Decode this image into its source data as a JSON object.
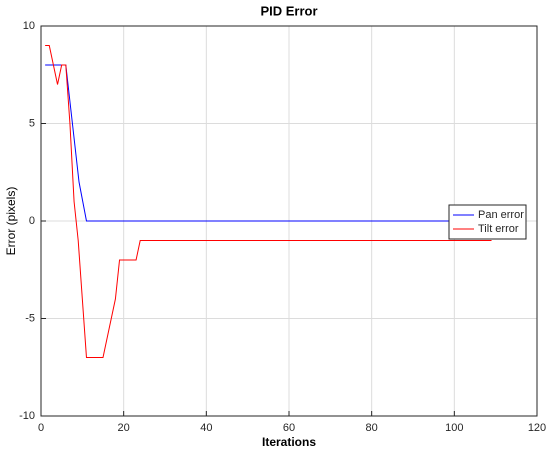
{
  "chart_data": {
    "type": "line",
    "title": "PID Error",
    "x_label": "Iterations",
    "y_label": "Error (pixels)",
    "xlim": [
      0,
      120
    ],
    "xticks": [
      0,
      20,
      40,
      60,
      80,
      100,
      120
    ],
    "ylim": [
      -10,
      10
    ],
    "yticks": [
      -10,
      -5,
      0,
      5,
      10
    ],
    "grid": true,
    "legend": "east",
    "series": [
      {
        "name": "Pan error",
        "color": "#0000ff",
        "x": [
          1,
          6,
          9.2,
          11,
          109
        ],
        "values": [
          8,
          8,
          2,
          0,
          0
        ]
      },
      {
        "name": "Tilt error",
        "color": "#ff0000",
        "x": [
          1,
          2,
          3,
          4,
          5,
          6,
          7,
          8,
          9,
          10,
          11,
          15,
          18,
          19,
          23,
          24,
          109
        ],
        "values": [
          9,
          9,
          8,
          7,
          8,
          8,
          5,
          1,
          -1,
          -4,
          -7,
          -7,
          -4,
          -2,
          -2,
          -1,
          -1
        ]
      }
    ]
  }
}
